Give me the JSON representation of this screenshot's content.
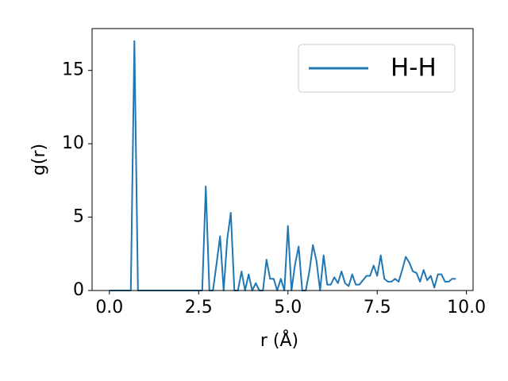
{
  "chart_data": {
    "type": "line",
    "xlabel": "r (Å)",
    "ylabel": "g(r)",
    "x": [
      0,
      0.1,
      0.2,
      0.3,
      0.4,
      0.5,
      0.6,
      0.7,
      0.8,
      0.9,
      1,
      1.1,
      1.2,
      1.3,
      1.4,
      1.5,
      1.6,
      1.7,
      1.8,
      1.9,
      2,
      2.1,
      2.2,
      2.3,
      2.4,
      2.5,
      2.6,
      2.7,
      2.8,
      2.9,
      3,
      3.1,
      3.2,
      3.3,
      3.4,
      3.5,
      3.6,
      3.7,
      3.8,
      3.9,
      4,
      4.1,
      4.2,
      4.3,
      4.4,
      4.5,
      4.6,
      4.7,
      4.8,
      4.9,
      5,
      5.1,
      5.2,
      5.3,
      5.4,
      5.5,
      5.6,
      5.7,
      5.8,
      5.9,
      6,
      6.1,
      6.2,
      6.3,
      6.4,
      6.5,
      6.6,
      6.7,
      6.8,
      6.9,
      7,
      7.1,
      7.2,
      7.3,
      7.4,
      7.5,
      7.6,
      7.7,
      7.8,
      7.9,
      8,
      8.1,
      8.2,
      8.3,
      8.4,
      8.5,
      8.6,
      8.7,
      8.8,
      8.9,
      9,
      9.1,
      9.2,
      9.3,
      9.4,
      9.5,
      9.6,
      9.7
    ],
    "series": [
      {
        "name": "H-H",
        "color": "#1f77b4",
        "values": [
          0,
          0,
          0,
          0,
          0,
          0,
          0,
          17,
          0,
          0,
          0,
          0,
          0,
          0,
          0,
          0,
          0,
          0,
          0,
          0,
          0,
          0,
          0,
          0,
          0,
          0,
          0,
          7.1,
          0,
          0,
          1.8,
          3.7,
          0,
          3.5,
          5.3,
          0,
          0,
          1.3,
          0,
          1.1,
          0,
          0.5,
          0,
          0,
          2.1,
          0.8,
          0.8,
          0,
          0.8,
          0,
          4.4,
          0,
          1.8,
          3.0,
          0,
          0,
          1.3,
          3.1,
          2.0,
          0,
          2.4,
          0.4,
          0.4,
          0.9,
          0.5,
          1.3,
          0.5,
          0.3,
          1.1,
          0.4,
          0.4,
          0.7,
          1.0,
          1.0,
          1.7,
          1.0,
          2.4,
          0.8,
          0.6,
          0.6,
          0.8,
          0.6,
          1.4,
          2.3,
          1.9,
          1.3,
          1.2,
          0.6,
          1.4,
          0.7,
          1.0,
          0.2,
          1.1,
          1.1,
          0.6,
          0.6,
          0.8,
          0.8
        ]
      }
    ],
    "xlim": [
      -0.485,
      10.185
    ],
    "xticks": [
      {
        "value": 0,
        "label": "0.0"
      },
      2.5,
      {
        "value": 5,
        "label": "5.0"
      },
      7.5,
      {
        "value": 10,
        "label": "10.0"
      }
    ],
    "ylim": [
      0,
      17.85
    ],
    "yticks": [
      0,
      5,
      10,
      15
    ],
    "legend": "upper right",
    "grid": false
  }
}
